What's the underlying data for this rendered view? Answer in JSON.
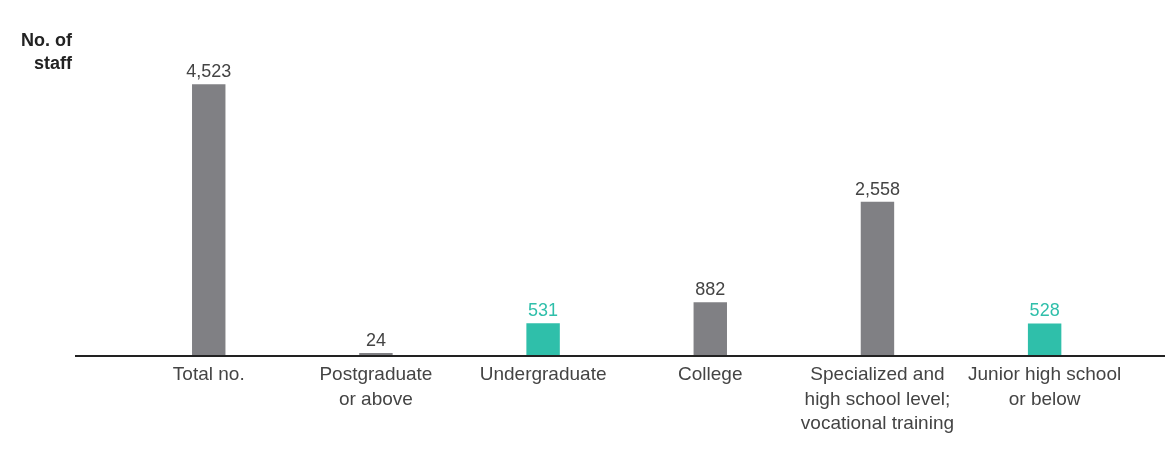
{
  "chart_data": {
    "type": "bar",
    "ylabel": "No. of\nstaff",
    "categories": [
      "Total no.",
      "Postgraduate\nor above",
      "Undergraduate",
      "College",
      "Specialized and\nhigh school level;\nvocational training",
      "Junior high school\nor below"
    ],
    "values": [
      4523,
      24,
      531,
      882,
      2558,
      528
    ],
    "colors": [
      "#808084",
      "#808084",
      "#2fbfaa",
      "#808084",
      "#808084",
      "#2fbfaa"
    ],
    "value_labels": [
      "4,523",
      "24",
      "531",
      "882",
      "2,558",
      "528"
    ]
  }
}
